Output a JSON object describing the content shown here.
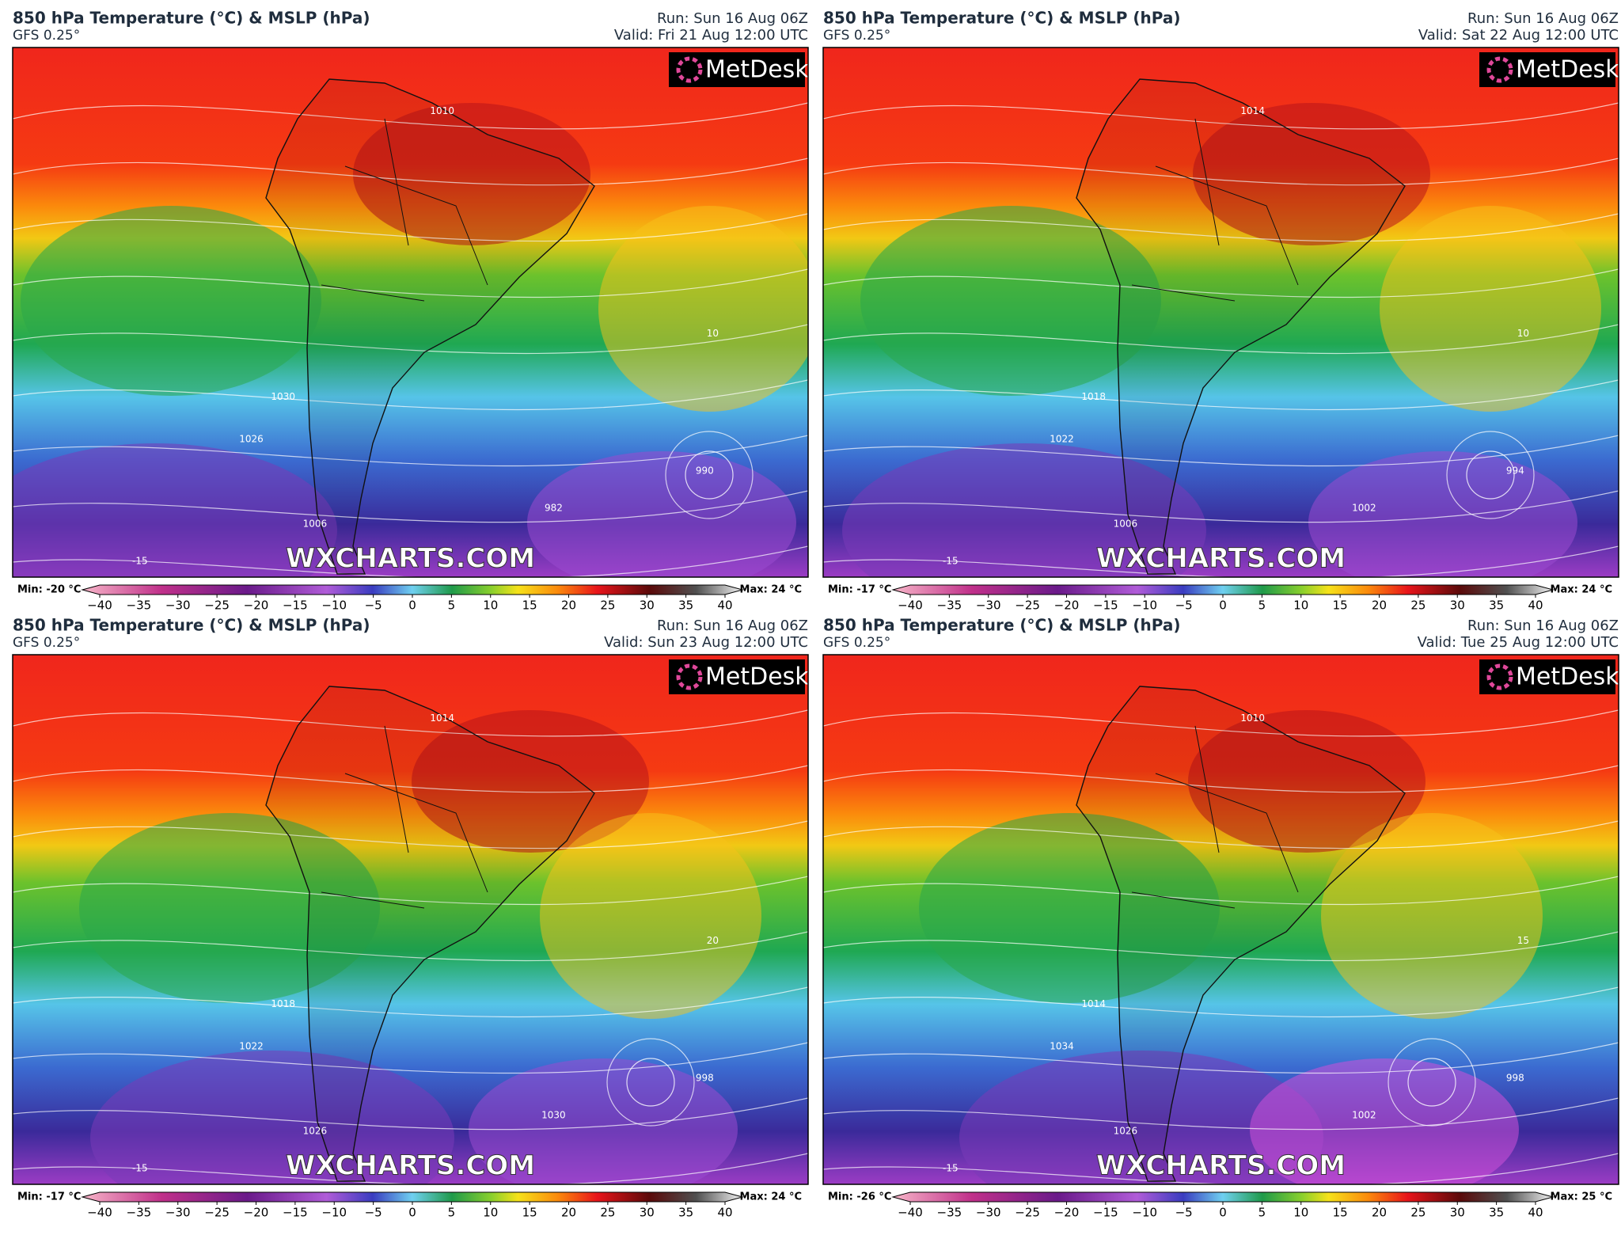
{
  "colorbar_ticks": [
    {
      "value": -40,
      "label": "−40"
    },
    {
      "value": -35,
      "label": "−35"
    },
    {
      "value": -30,
      "label": "−30"
    },
    {
      "value": -25,
      "label": "−25"
    },
    {
      "value": -20,
      "label": "−20"
    },
    {
      "value": -15,
      "label": "−15"
    },
    {
      "value": -10,
      "label": "−10"
    },
    {
      "value": -5,
      "label": "−5"
    },
    0,
    5,
    10,
    15,
    20,
    25,
    30,
    35,
    40
  ],
  "panels": [
    {
      "title": "850 hPa Temperature (°C) & MSLP (hPa)",
      "model": "GFS 0.25°",
      "run": "Run: Sun 16 Aug 06Z",
      "valid": "Valid: Fri 21 Aug 12:00 UTC",
      "min": "Min: -20 °C",
      "max": "Max: 24 °C",
      "logo": "MetDesk",
      "watermark": "WXCHARTS.COM",
      "contour_labels": [
        "1010",
        "1030",
        "1026",
        "1006",
        "990",
        "982",
        "10",
        "-15"
      ]
    },
    {
      "title": "850 hPa Temperature (°C) & MSLP (hPa)",
      "model": "GFS 0.25°",
      "run": "Run: Sun 16 Aug 06Z",
      "valid": "Valid: Sat 22 Aug 12:00 UTC",
      "min": "Min: -17 °C",
      "max": "Max: 24 °C",
      "logo": "MetDesk",
      "watermark": "WXCHARTS.COM",
      "contour_labels": [
        "1014",
        "1018",
        "1022",
        "1006",
        "994",
        "1002",
        "10",
        "-15"
      ]
    },
    {
      "title": "850 hPa Temperature (°C) & MSLP (hPa)",
      "model": "GFS 0.25°",
      "run": "Run: Sun 16 Aug 06Z",
      "valid": "Valid: Sun 23 Aug 12:00 UTC",
      "min": "Min: -17 °C",
      "max": "Max: 24 °C",
      "logo": "MetDesk",
      "watermark": "WXCHARTS.COM",
      "contour_labels": [
        "1014",
        "1018",
        "1022",
        "1026",
        "998",
        "1030",
        "20",
        "-15"
      ]
    },
    {
      "title": "850 hPa Temperature (°C) & MSLP (hPa)",
      "model": "GFS 0.25°",
      "run": "Run: Sun 16 Aug 06Z",
      "valid": "Valid: Tue 25 Aug 12:00 UTC",
      "min": "Min: -26 °C",
      "max": "Max: 25 °C",
      "logo": "MetDesk",
      "watermark": "WXCHARTS.COM",
      "contour_labels": [
        "1010",
        "1014",
        "1034",
        "1026",
        "998",
        "1002",
        "15",
        "-15"
      ]
    }
  ]
}
